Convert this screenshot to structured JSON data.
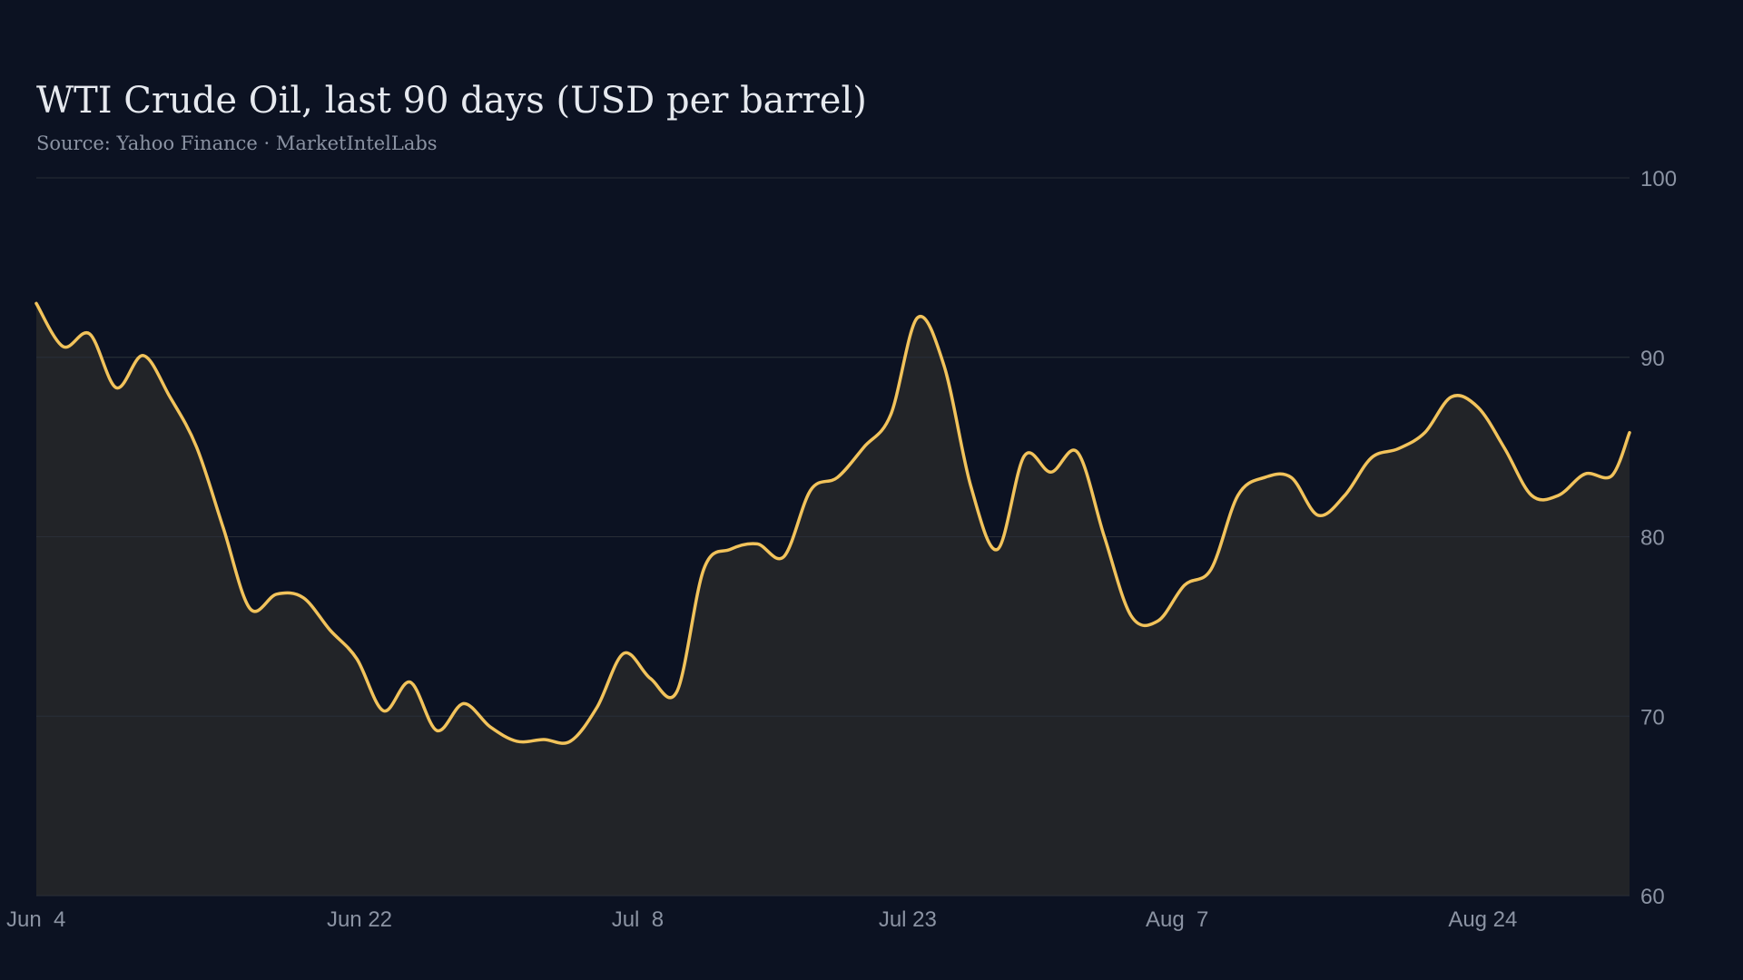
{
  "title": "WTI Crude Oil, last 90 days (USD per barrel)",
  "subtitle": "Source: Yahoo Finance · MarketIntelLabs",
  "colors": {
    "background": "#0c1222",
    "line": "#f2c35b",
    "area": "#222428",
    "grid": "#1e2a36",
    "text": "#8b93a3"
  },
  "chart_data": {
    "type": "area",
    "title": "WTI Crude Oil, last 90 days (USD per barrel)",
    "xlabel": "",
    "ylabel": "",
    "ylim": [
      60,
      100
    ],
    "y_ticks": [
      60,
      70,
      80,
      90,
      100
    ],
    "y_axis_side": "right",
    "grid": true,
    "x_ticks": [
      {
        "label": "Jun  4",
        "day": 0
      },
      {
        "label": "Jun 22",
        "day": 18
      },
      {
        "label": "Jul  8",
        "day": 34
      },
      {
        "label": "Jul 23",
        "day": 49
      },
      {
        "label": "Aug  7",
        "day": 64
      },
      {
        "label": "Aug 24",
        "day": 81
      }
    ],
    "series": [
      {
        "x": [
          0,
          1.5,
          3,
          4.5,
          6,
          7.5,
          9,
          10.5,
          12,
          13.5,
          15,
          16.5,
          18,
          19.5,
          21,
          22.5,
          24,
          25.5,
          27,
          28.5,
          30,
          31.5,
          33,
          34.5,
          36,
          37.5,
          39,
          40.5,
          42,
          43.5,
          45,
          46.5,
          48,
          49.5,
          51,
          52.5,
          54,
          55.5,
          57,
          58.5,
          60,
          61.5,
          63,
          64.5,
          66,
          67.5,
          69,
          70.5,
          72,
          73.5,
          75,
          76.5,
          78,
          79.5,
          81,
          82.5,
          84,
          85.5,
          87,
          88.5,
          89.5
        ],
        "values": [
          93.0,
          90.6,
          91.3,
          88.3,
          90.1,
          87.8,
          85.0,
          80.5,
          76.0,
          76.8,
          76.6,
          74.8,
          73.2,
          70.3,
          71.9,
          69.2,
          70.7,
          69.4,
          68.6,
          68.7,
          68.6,
          70.5,
          73.5,
          72.1,
          71.4,
          78.2,
          79.3,
          79.6,
          78.9,
          82.6,
          83.3,
          85.0,
          86.8,
          92.2,
          89.5,
          82.8,
          79.3,
          84.5,
          83.6,
          84.7,
          80.0,
          75.6,
          75.3,
          77.3,
          78.2,
          82.3,
          83.3,
          83.3,
          81.2,
          82.3,
          84.4,
          84.9,
          85.8,
          87.8,
          87.2,
          84.9,
          82.3,
          82.3,
          83.5,
          83.4,
          85.8
        ]
      }
    ]
  }
}
